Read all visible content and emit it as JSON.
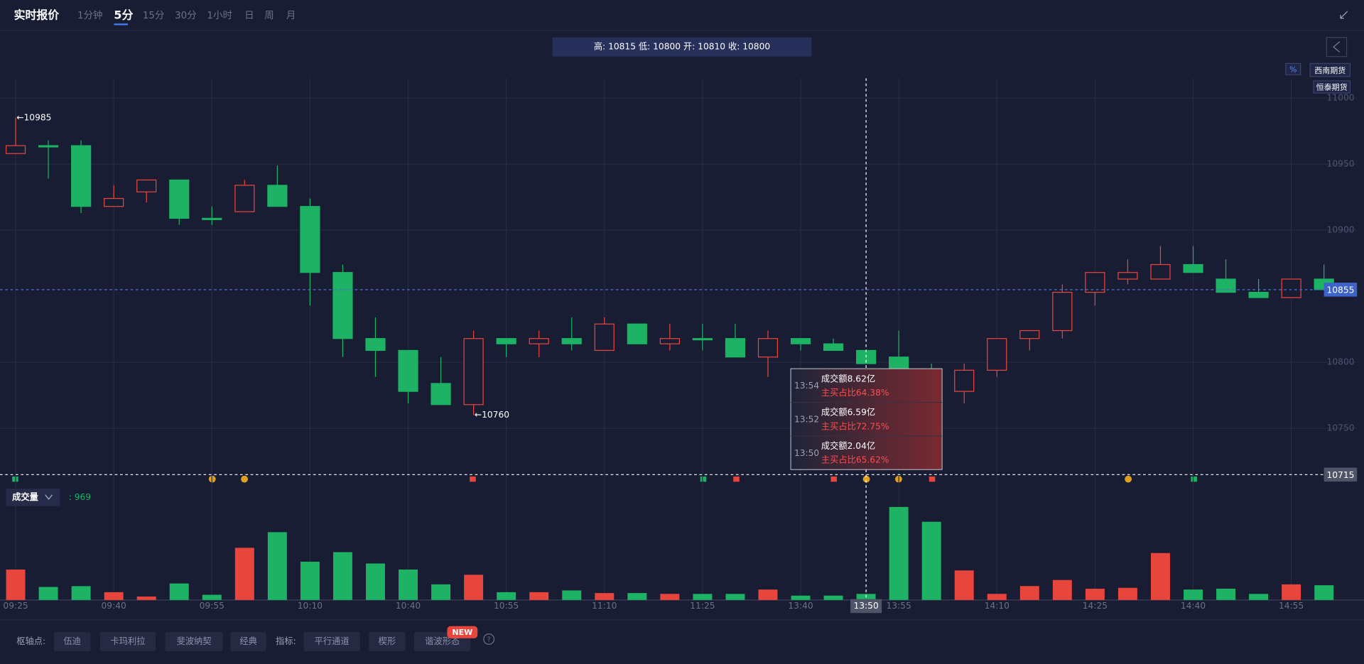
{
  "header": {
    "title": "实时报价",
    "tabs": [
      "1分钟",
      "5分",
      "15分",
      "30分",
      "1小时",
      "日",
      "周",
      "月"
    ],
    "active_tab": "5分"
  },
  "info_bar": "高: 10815 低: 10800 开: 10810 收: 10800",
  "broker_tags": [
    "%",
    "西南期货",
    "恒泰期货"
  ],
  "chart_data": [
    {
      "type": "candlestick",
      "categories": [
        "09:25",
        null,
        null,
        "09:40",
        null,
        null,
        "09:55",
        null,
        null,
        "10:10",
        null,
        null,
        "10:40",
        null,
        null,
        "10:55",
        null,
        null,
        "11:10",
        null,
        null,
        "11:25",
        null,
        null,
        "13:40",
        null,
        null,
        "13:55",
        null,
        null,
        "14:10",
        null,
        null,
        "14:25",
        null,
        null,
        "14:40",
        null,
        null,
        "14:55",
        null
      ],
      "open": [
        10958,
        10964,
        10964,
        10918,
        10929,
        10938,
        10909,
        10914,
        10934,
        10918,
        10868,
        10818,
        10809,
        10784,
        10768,
        10818,
        10814,
        10818,
        10809,
        10829,
        10814,
        10818,
        10818,
        10804,
        10818,
        10814,
        10809,
        10804,
        10794,
        10778,
        10794,
        10818,
        10824,
        10853,
        10863,
        10863,
        10874,
        10863,
        10853,
        10849,
        10863
      ],
      "high": [
        10985,
        10968,
        10968,
        10934,
        10938,
        10938,
        10918,
        10938,
        10949,
        10924,
        10874,
        10834,
        10809,
        10804,
        10824,
        10818,
        10824,
        10834,
        10834,
        10829,
        10829,
        10829,
        10829,
        10824,
        10818,
        10818,
        10809,
        10824,
        10799,
        10799,
        10818,
        10824,
        10859,
        10868,
        10878,
        10888,
        10888,
        10878,
        10863,
        10863,
        10874
      ],
      "low": [
        10958,
        10939,
        10913,
        10918,
        10921,
        10904,
        10904,
        10914,
        10918,
        10843,
        10804,
        10789,
        10769,
        10768,
        10760,
        10804,
        10804,
        10809,
        10809,
        10814,
        10809,
        10809,
        10804,
        10789,
        10809,
        10809,
        10799,
        10784,
        10774,
        10769,
        10789,
        10809,
        10818,
        10843,
        10859,
        10863,
        10868,
        10853,
        10849,
        10849,
        10855
      ],
      "close": [
        10964,
        10963,
        10918,
        10924,
        10938,
        10909,
        10908,
        10934,
        10918,
        10868,
        10818,
        10809,
        10778,
        10768,
        10818,
        10814,
        10818,
        10814,
        10829,
        10814,
        10818,
        10817,
        10804,
        10818,
        10814,
        10809,
        10799,
        10789,
        10784,
        10794,
        10818,
        10824,
        10853,
        10868,
        10868,
        10874,
        10868,
        10853,
        10849,
        10863,
        10855
      ],
      "up_color": "#e8453c",
      "down_color": "#1db264",
      "ylim": [
        10705,
        11015
      ],
      "yticks": [
        10750,
        10800,
        10900,
        10950,
        11000
      ],
      "grid": true,
      "last_price": 10855,
      "annotations": [
        {
          "value": 10985,
          "label": "←10985"
        },
        {
          "value": 10760,
          "label": "←10760"
        }
      ],
      "crosshair": {
        "x": "13:50",
        "y": 10715
      }
    },
    {
      "type": "bar",
      "title": "成交量",
      "values": [
        4830,
        2070,
        2200,
        1240,
        550,
        2620,
        830,
        8280,
        10760,
        6070,
        7590,
        5790,
        4830,
        2480,
        4000,
        1240,
        1240,
        1520,
        1100,
        1100,
        970,
        970,
        970,
        1660,
        690,
        690,
        969,
        14760,
        12410,
        4690,
        970,
        2210,
        3170,
        1790,
        1930,
        7450,
        1660,
        1790,
        970,
        2480,
        2340
      ],
      "ylim": [
        0,
        16000
      ],
      "readout": {
        "value": 969,
        "label": ": 969"
      }
    }
  ],
  "tooltip": [
    {
      "time": "13:54",
      "amount": "成交额8.62亿",
      "ratio": "主买占比64.38%"
    },
    {
      "time": "13:52",
      "amount": "成交额6.59亿",
      "ratio": "主买占比72.75%"
    },
    {
      "time": "13:50",
      "amount": "成交额2.04亿",
      "ratio": "主买占比65.62%"
    }
  ],
  "footer": {
    "pivot_label": "枢轴点:",
    "pivots": [
      "伍迪",
      "卡玛利拉",
      "斐波纳契",
      "经典"
    ],
    "indicator_label": "指标:",
    "indicators": [
      "平行通道",
      "楔形",
      "谐波形态"
    ],
    "badge": "NEW",
    "help": "?"
  }
}
